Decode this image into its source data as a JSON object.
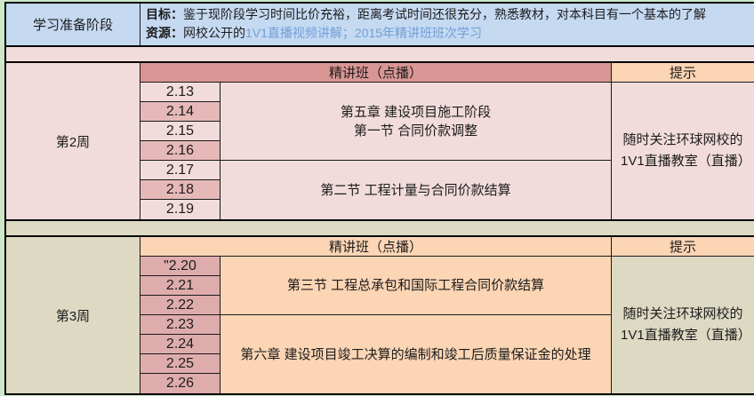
{
  "palette": {
    "page_background": "#cde7c8",
    "header_blue": "#c5d9f1",
    "rose_dark": "#d99694",
    "rose_mid": "#e6b9b8",
    "rose_light": "#f2dcdb",
    "week3_date_rose": "#dfacac",
    "peach": "#fcd5b4",
    "beige": "#ddd9c3",
    "link_blue": "#6f9fd8",
    "border_black": "#000000"
  },
  "header": {
    "stage_label": "学习准备阶段",
    "goal_label": "目标：",
    "goal_text": "鉴于现阶段学习时间比价充裕，距离考试时间还很充分，熟悉教材，对本科目有一个基本的了解",
    "resource_label": "资源：",
    "resource_text": "网校公开的",
    "resource_link": "1V1直播视频讲解；2015年精讲班班次学习"
  },
  "week2": {
    "label": "第2周",
    "class_header": "精讲班（点播）",
    "tip_header": "提示",
    "dates": [
      "2.13",
      "2.14",
      "2.15",
      "2.16",
      "2.17",
      "2.18",
      "2.19"
    ],
    "content_block_a": "第五章  建设项目施工阶段\n第一节  合同价款调整",
    "content_block_b": "第二节  工程计量与合同价款结算",
    "tip": "随时关注环球网校的1V1直播教室（直播）"
  },
  "week3": {
    "label": "第3周",
    "class_header": "精讲班（点播）",
    "tip_header": "提示",
    "dates": [
      "\"2.20",
      "2.21",
      "2.22",
      "2.23",
      "2.24",
      "2.25",
      "2.26"
    ],
    "content_block_a": "第三节  工程总承包和国际工程合同价款结算",
    "content_block_b": "第六章  建设项目竣工决算的编制和竣工后质量保证金的处理",
    "tip": "随时关注环球网校的1V1直播教室（直播）"
  }
}
